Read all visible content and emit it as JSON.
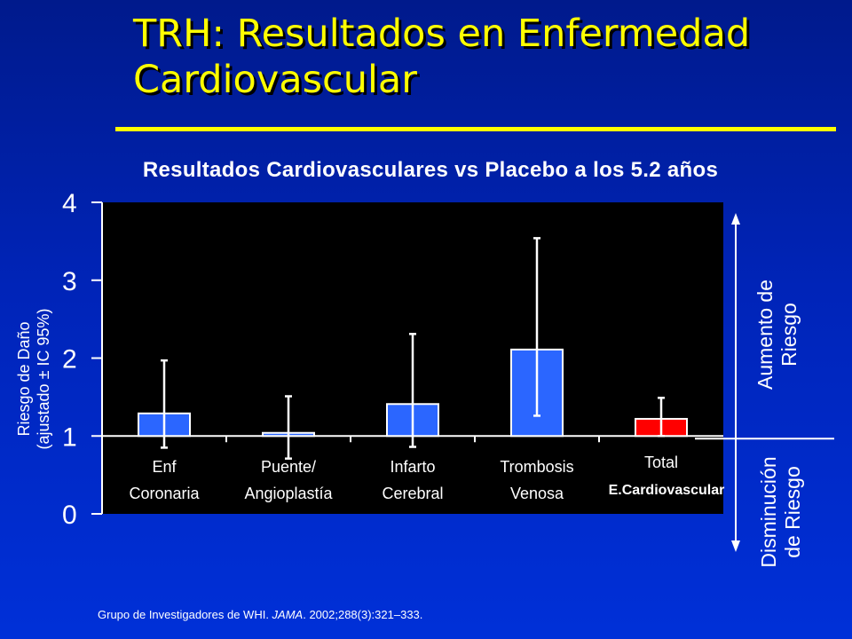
{
  "slide": {
    "title_line1": "TRH: Resultados en Enfermedad",
    "title_line2": "Cardiovascular",
    "increase_label_line1": "Aumento de",
    "increase_label_line2": "Riesgo",
    "decrease_label_line1": "Disminución",
    "decrease_label_line2": "de Riesgo",
    "citation_prefix": "Grupo de Investigadores de WHI. ",
    "citation_journal": "JAMA",
    "citation_suffix": ". 2002;288(3):321–333."
  },
  "colors": {
    "title": "#ffff00",
    "bar_default": "#2b66ff",
    "bar_highlight": "#ff0000",
    "plot_background": "#000000"
  },
  "chart_data": {
    "type": "bar",
    "title": "Resultados Cardiovasculares vs Placebo  a los 5.2 años",
    "ylabel_line1": "Riesgo de Daño",
    "ylabel_line2": "(ajustado ± IC 95%)",
    "xlabel": "",
    "ylim": [
      0,
      4
    ],
    "yticks": [
      "0",
      "1",
      "2",
      "3",
      "4"
    ],
    "reference_value": 1,
    "grid": false,
    "categories": [
      {
        "line1": "Enf",
        "line2": "Coronaria"
      },
      {
        "line1": "Puente/",
        "line2": "Angioplastía"
      },
      {
        "line1": "Infarto",
        "line2": "Cerebral"
      },
      {
        "line1": "Trombosis",
        "line2": "Venosa"
      },
      {
        "line1": "Total",
        "line2": "E.Cardiovascular"
      }
    ],
    "values": [
      1.29,
      1.04,
      1.41,
      2.11,
      1.22
    ],
    "ci_lower": [
      0.85,
      0.71,
      0.86,
      1.26,
      1.0
    ],
    "ci_upper": [
      1.97,
      1.51,
      2.31,
      3.54,
      1.49
    ],
    "highlight_index": 4
  }
}
